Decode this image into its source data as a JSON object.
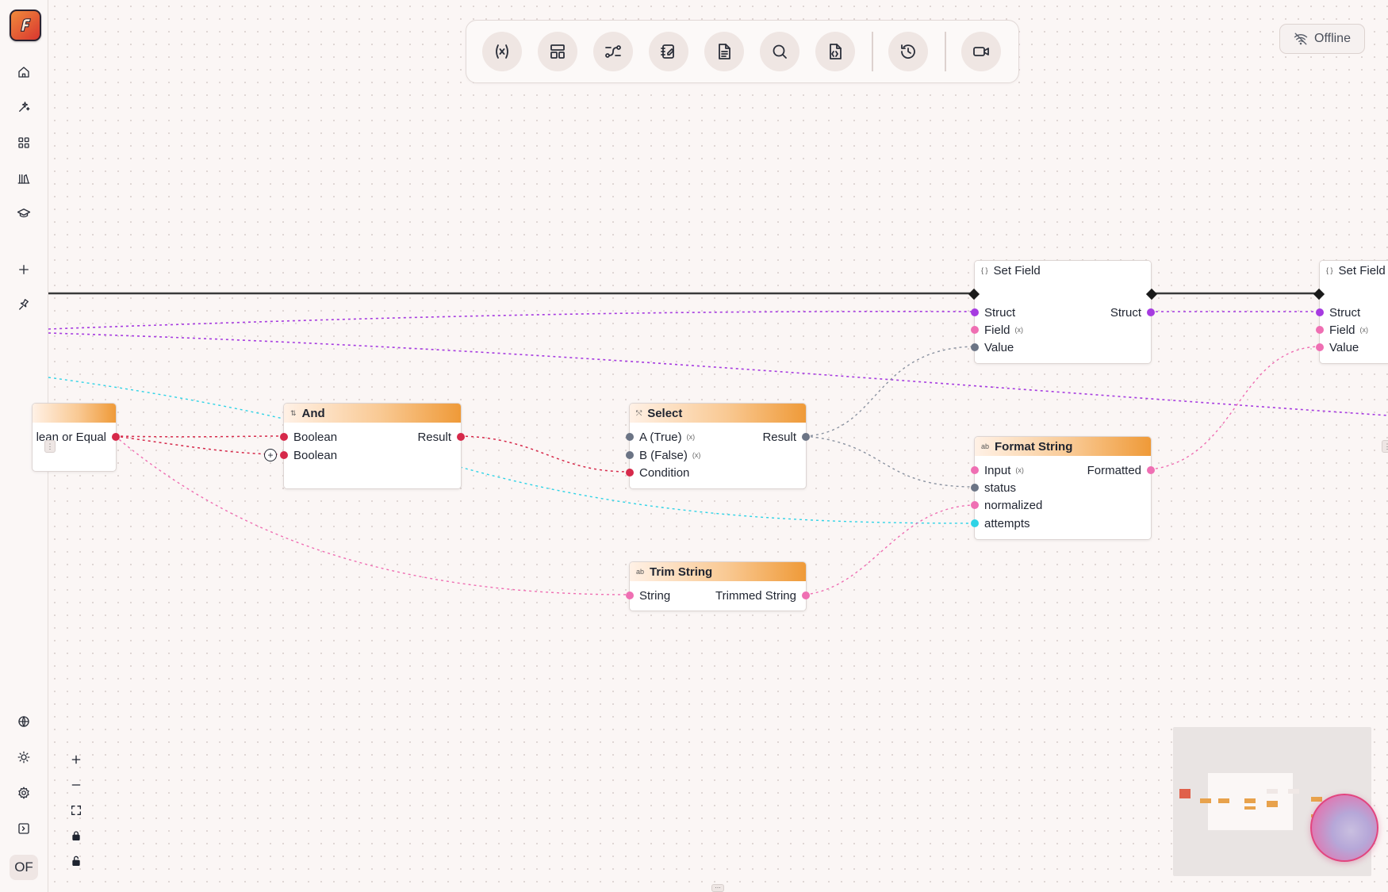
{
  "app": {
    "status": "Offline",
    "user_initials": "OF"
  },
  "sidebar": {
    "items": [
      {
        "icon": "home-icon"
      },
      {
        "icon": "sparkles-icon"
      },
      {
        "icon": "grid-icon"
      },
      {
        "icon": "library-icon"
      },
      {
        "icon": "graduation-cap-icon"
      },
      {
        "icon": "plus-icon"
      },
      {
        "icon": "pin-icon"
      },
      {
        "icon": "globe-icon"
      },
      {
        "icon": "sun-icon"
      },
      {
        "icon": "gear-icon"
      },
      {
        "icon": "terminal-icon"
      }
    ]
  },
  "toolbar": {
    "buttons": [
      {
        "icon": "variable-icon"
      },
      {
        "icon": "layout-icon"
      },
      {
        "icon": "connections-icon"
      },
      {
        "icon": "notebook-icon"
      },
      {
        "icon": "document-icon"
      },
      {
        "icon": "search-icon"
      },
      {
        "icon": "code-file-icon"
      },
      {
        "icon": "history-icon"
      },
      {
        "icon": "video-icon"
      }
    ]
  },
  "nodes": {
    "partial_left": {
      "pin_out": "lean or Equal"
    },
    "and": {
      "title": "And",
      "icon": "⇅",
      "in1": "Boolean",
      "in2": "Boolean",
      "out": "Result"
    },
    "select": {
      "title": "Select",
      "icon": "⤲",
      "in1": "A (True)",
      "in2": "B (False)",
      "in3": "Condition",
      "out": "Result",
      "var_mark": "(x)"
    },
    "trim": {
      "title": "Trim String",
      "icon": "ab",
      "in1": "String",
      "out": "Trimmed String"
    },
    "format": {
      "title": "Format String",
      "icon": "ab",
      "in1": "Input",
      "in2": "status",
      "in3": "normalized",
      "in4": "attempts",
      "out": "Formatted",
      "var_mark": "(x)"
    },
    "setfield1": {
      "title": "Set Field",
      "icon": "{ }",
      "in1": "Struct",
      "in2": "Field",
      "in3": "Value",
      "out": "Struct",
      "var_mark": "(x)"
    },
    "setfield2": {
      "title": "Set Field",
      "icon": "{ }",
      "in1": "Struct",
      "in2": "Field",
      "in3": "Value",
      "var_mark": "(x)"
    }
  },
  "colors": {
    "bool": "#d6294a",
    "string": "#ef6fb3",
    "struct": "#a63be0",
    "generic": "#6b7485",
    "int": "#2fd3e6",
    "exec": "#1a1a1a",
    "accent": "#ef9a38"
  }
}
